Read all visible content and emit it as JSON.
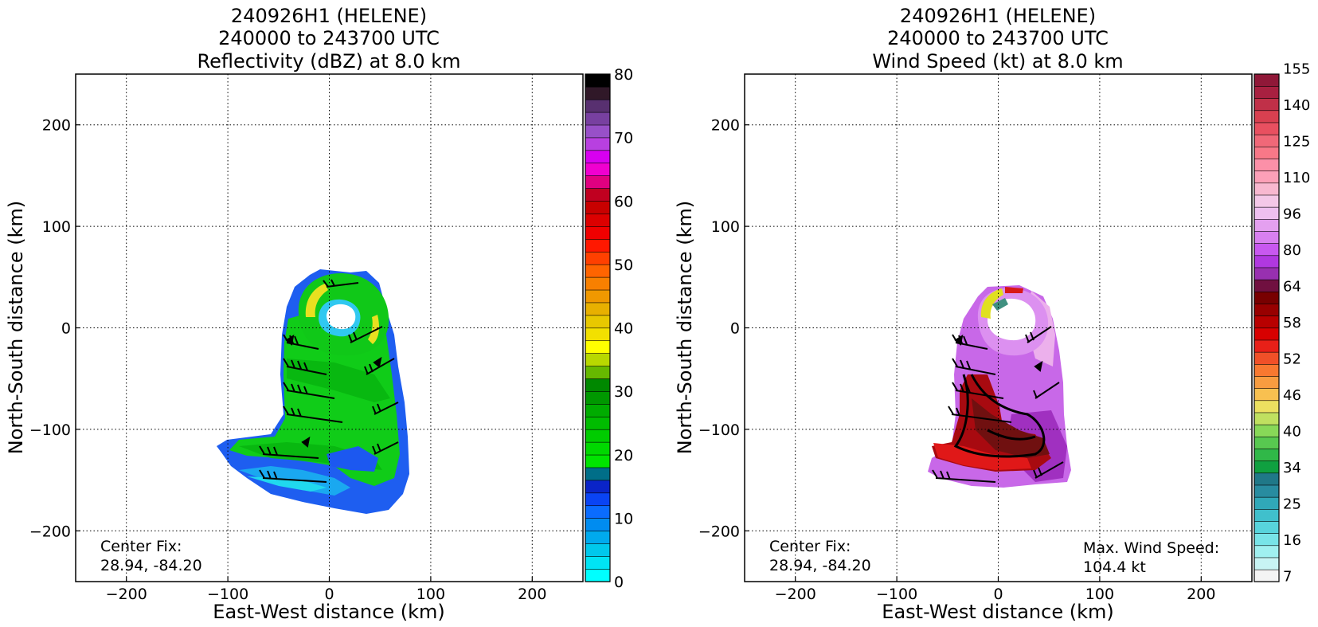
{
  "figure": {
    "panels": [
      {
        "title_lines": [
          "240926H1 (HELENE)",
          "240000 to 243700 UTC",
          "Reflectivity (dBZ) at 8.0 km"
        ],
        "annotation_left": [
          "Center Fix:",
          "28.94, -84.20"
        ],
        "annotation_right": []
      },
      {
        "title_lines": [
          "240926H1 (HELENE)",
          "240000 to 243700 UTC",
          "Wind Speed (kt) at 8.0 km"
        ],
        "annotation_left": [
          "Center Fix:",
          "28.94, -84.20"
        ],
        "annotation_right": [
          "Max. Wind Speed:",
          "104.4 kt"
        ]
      }
    ]
  },
  "chart_data": [
    {
      "type": "heatmap",
      "title": "240926H1 (HELENE) 240000 to 243700 UTC Reflectivity (dBZ) at 8.0 km",
      "xlabel": "East-West distance (km)",
      "ylabel": "North-South distance (km)",
      "xlim": [
        -250,
        250
      ],
      "ylim": [
        -250,
        250
      ],
      "xticks": [
        -200,
        -100,
        0,
        100,
        200
      ],
      "yticks": [
        200,
        100,
        0,
        -100,
        -200
      ],
      "grid": true,
      "center_fix": "28.94, -84.20",
      "colorbar": {
        "label": "Reflectivity (dBZ)",
        "min": 0,
        "max": 80,
        "ticks": [
          0,
          10,
          20,
          30,
          40,
          50,
          60,
          70,
          80
        ],
        "colors": [
          "#00ffff",
          "#00e4f4",
          "#00c8ec",
          "#00aaee",
          "#008cf0",
          "#0a6cff",
          "#0a44f4",
          "#0a24c8",
          "#006e88",
          "#00e400",
          "#00d800",
          "#00cc00",
          "#00bc00",
          "#00ac00",
          "#009800",
          "#008800",
          "#66b800",
          "#b8d800",
          "#ffff00",
          "#f2e000",
          "#e8c800",
          "#e8b000",
          "#f09800",
          "#f88000",
          "#ff6400",
          "#ff4000",
          "#ff1800",
          "#f00000",
          "#dc0000",
          "#c80000",
          "#c00020",
          "#e00080",
          "#f000d0",
          "#d800f0",
          "#b840e0",
          "#9850c8",
          "#7840a0",
          "#583070",
          "#301828",
          "#000000"
        ]
      }
    },
    {
      "type": "heatmap",
      "title": "240926H1 (HELENE) 240000 to 243700 UTC Wind Speed (kt) at 8.0 km",
      "xlabel": "East-West distance (km)",
      "ylabel": "North-South distance (km)",
      "xlim": [
        -250,
        250
      ],
      "ylim": [
        -250,
        250
      ],
      "xticks": [
        -200,
        -100,
        0,
        100,
        200
      ],
      "yticks": [
        200,
        100,
        0,
        -100,
        -200
      ],
      "grid": true,
      "center_fix": "28.94, -84.20",
      "max_wind_speed_kt": 104.4,
      "colorbar": {
        "label": "Wind Speed (kt)",
        "tick_labels": [
          "7",
          "16",
          "25",
          "34",
          "40",
          "46",
          "52",
          "58",
          "64",
          "80",
          "96",
          "110",
          "125",
          "140",
          "155"
        ],
        "colors": [
          "#f4f4f4",
          "#c8f4f4",
          "#a0f0f0",
          "#78e4e8",
          "#58d4dc",
          "#40c0cc",
          "#30a8b8",
          "#288ca0",
          "#207888",
          "#10a040",
          "#30b848",
          "#58c850",
          "#88d858",
          "#c0e060",
          "#ece060",
          "#f8c050",
          "#f89c40",
          "#f87830",
          "#f05028",
          "#e82018",
          "#d80000",
          "#b80000",
          "#980000",
          "#780000",
          "#701040",
          "#9830b0",
          "#b038e0",
          "#c858f0",
          "#d880f0",
          "#e4a0f0",
          "#eec0f0",
          "#f4c8e8",
          "#f8b8d0",
          "#fca0b8",
          "#fc90a8",
          "#f87888",
          "#f06878",
          "#e85060",
          "#d84050",
          "#c03048",
          "#a82040",
          "#901838"
        ]
      }
    }
  ]
}
